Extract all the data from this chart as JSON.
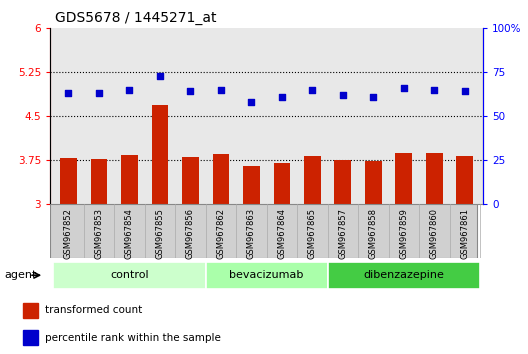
{
  "title": "GDS5678 / 1445271_at",
  "samples": [
    "GSM967852",
    "GSM967853",
    "GSM967854",
    "GSM967855",
    "GSM967856",
    "GSM967862",
    "GSM967863",
    "GSM967864",
    "GSM967865",
    "GSM967857",
    "GSM967858",
    "GSM967859",
    "GSM967860",
    "GSM967861"
  ],
  "bar_values": [
    3.78,
    3.76,
    3.83,
    4.68,
    3.79,
    3.84,
    3.65,
    3.69,
    3.81,
    3.74,
    3.72,
    3.86,
    3.87,
    3.81
  ],
  "dot_values": [
    63,
    63,
    65,
    73,
    64,
    65,
    58,
    61,
    65,
    62,
    61,
    66,
    65,
    64
  ],
  "ylim_left": [
    3.0,
    6.0
  ],
  "ylim_right": [
    0,
    100
  ],
  "yticks_left": [
    3.0,
    3.75,
    4.5,
    5.25,
    6.0
  ],
  "yticks_right": [
    0,
    25,
    50,
    75,
    100
  ],
  "ytick_labels_left": [
    "3",
    "3.75",
    "4.5",
    "5.25",
    "6"
  ],
  "ytick_labels_right": [
    "0",
    "25",
    "50",
    "75",
    "100%"
  ],
  "hlines": [
    3.75,
    4.5,
    5.25
  ],
  "bar_color": "#cc2200",
  "dot_color": "#0000cc",
  "groups": [
    {
      "label": "control",
      "start": 0,
      "end": 5,
      "color": "#ccffcc"
    },
    {
      "label": "bevacizumab",
      "start": 5,
      "end": 9,
      "color": "#aaffaa"
    },
    {
      "label": "dibenzazepine",
      "start": 9,
      "end": 14,
      "color": "#44cc44"
    }
  ],
  "agent_label": "agent",
  "legend_bar_label": "transformed count",
  "legend_dot_label": "percentile rank within the sample",
  "title_fontsize": 10,
  "tick_fontsize": 7.5,
  "bar_bottom": 3.0,
  "plot_bg": "#e8e8e8",
  "xtick_bg": "#d0d0d0"
}
